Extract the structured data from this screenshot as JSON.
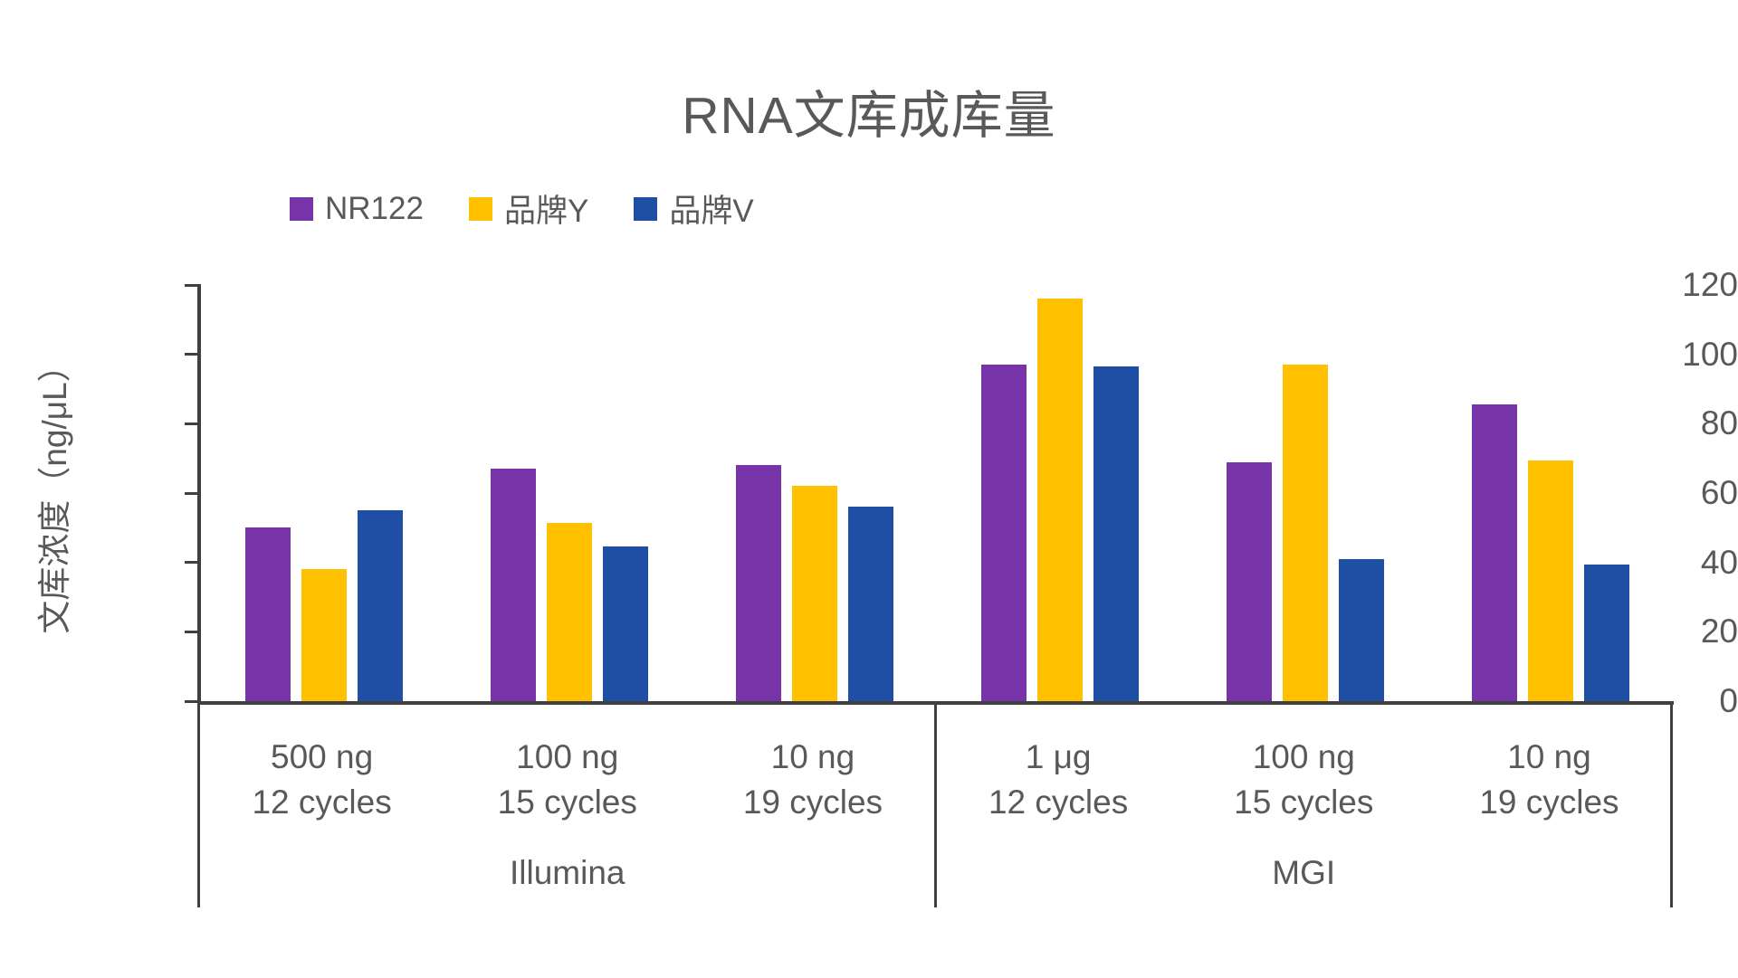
{
  "chart_data": {
    "type": "bar",
    "title": "RNA文库成库量",
    "ylabel": "文库浓度（ng/μL）",
    "xlabel": "",
    "ylim": [
      0,
      120
    ],
    "ytick_step": 20,
    "grid": false,
    "legend_position": "top-left",
    "axis_color": "#404040",
    "text_color": "#595959",
    "categories": [
      {
        "line1": "500 ng",
        "line2": "12 cycles"
      },
      {
        "line1": "100 ng",
        "line2": "15 cycles"
      },
      {
        "line1": "10 ng",
        "line2": "19 cycles"
      },
      {
        "line1": "1 μg",
        "line2": "12 cycles"
      },
      {
        "line1": "100 ng",
        "line2": "15 cycles"
      },
      {
        "line1": "10 ng",
        "line2": "19 cycles"
      }
    ],
    "platform_groups": [
      {
        "label": "Illumina",
        "count": 3
      },
      {
        "label": "MGI",
        "count": 3
      }
    ],
    "series": [
      {
        "name": "NR122",
        "color": "#7733A8",
        "values": [
          50,
          67,
          68,
          97,
          69,
          85.5
        ]
      },
      {
        "name": "品牌Y",
        "color": "#FFC000",
        "values": [
          38,
          51.5,
          62,
          116,
          97,
          69.5
        ]
      },
      {
        "name": "品牌V",
        "color": "#1F4FA5",
        "values": [
          55,
          44.5,
          56,
          96.5,
          41,
          39.5
        ]
      }
    ],
    "ytick_labels": [
      "0",
      "20",
      "40",
      "60",
      "80",
      "100",
      "120"
    ]
  }
}
